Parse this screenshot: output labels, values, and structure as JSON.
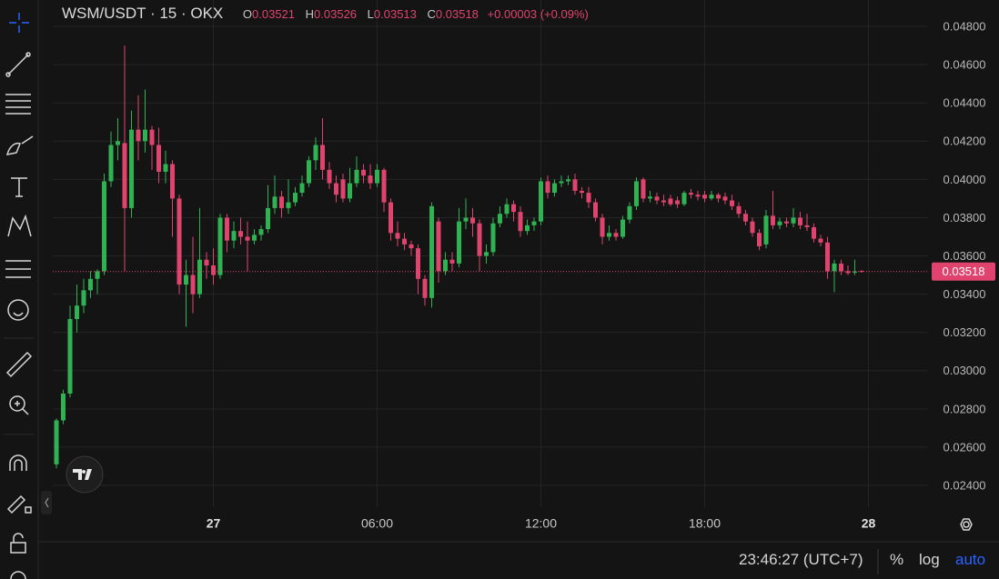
{
  "chart_data": {
    "type": "candlestick",
    "title": "WSM/USDT · 15 · OKX",
    "ohlc_labels": [
      "O",
      "H",
      "L",
      "C"
    ],
    "change": "+0.00003 (+0.09%)",
    "up_color": "#2fb352",
    "down_color": "#e0446e",
    "log_scale": false,
    "grid": true,
    "categories": [
      null,
      null,
      null,
      null,
      null,
      null,
      null,
      null,
      null,
      null,
      null,
      null,
      null,
      null,
      null,
      null,
      null,
      null,
      null,
      null,
      null,
      null,
      null,
      "27",
      null,
      null,
      null,
      null,
      null,
      null,
      null,
      null,
      null,
      null,
      null,
      null,
      null,
      null,
      null,
      null,
      null,
      null,
      null,
      null,
      null,
      null,
      null,
      "06:00",
      null,
      null,
      null,
      null,
      null,
      null,
      null,
      null,
      null,
      null,
      null,
      null,
      null,
      null,
      null,
      null,
      null,
      null,
      null,
      null,
      null,
      null,
      null,
      "12:00",
      null,
      null,
      null,
      null,
      null,
      null,
      null,
      null,
      null,
      null,
      null,
      null,
      null,
      null,
      null,
      null,
      null,
      null,
      null,
      null,
      null,
      null,
      null,
      "18:00",
      null,
      null,
      null,
      null,
      null,
      null,
      null,
      null,
      null,
      null,
      null,
      null,
      null,
      null,
      null,
      null,
      null,
      null,
      null,
      null,
      null,
      null,
      null,
      "28"
    ],
    "open": [
      0.0251,
      0.0274,
      0.0288,
      0.0327,
      0.0334,
      0.0342,
      0.0348,
      0.0352,
      0.0399,
      0.0418,
      0.0419,
      0.0385,
      0.0426,
      0.042,
      0.0426,
      0.0418,
      0.0404,
      0.0408,
      0.039,
      0.0345,
      0.035,
      0.034,
      0.0358,
      0.0355,
      0.035,
      0.038,
      0.0368,
      0.0373,
      0.037,
      0.0368,
      0.0371,
      0.0374,
      0.0385,
      0.0391,
      0.0385,
      0.0388,
      0.0393,
      0.0398,
      0.041,
      0.0418,
      0.0405,
      0.0398,
      0.04,
      0.039,
      0.0398,
      0.0405,
      0.0402,
      0.0398,
      0.0405,
      0.0388,
      0.0372,
      0.0369,
      0.0366,
      0.0364,
      0.0348,
      0.0338,
      0.0378,
      0.0352,
      0.0358,
      0.0356,
      0.0378,
      0.038,
      0.0377,
      0.036,
      0.0362,
      0.0377,
      0.0382,
      0.0387,
      0.0383,
      0.0373,
      0.0376,
      0.0378,
      0.0399,
      0.0393,
      0.0398,
      0.0399,
      0.04,
      0.0394,
      0.0393,
      0.0388,
      0.038,
      0.037,
      0.0372,
      0.037,
      0.0379,
      0.0386,
      0.04,
      0.039,
      0.0391,
      0.0389,
      0.039,
      0.0389,
      0.0387,
      0.0393,
      0.0392,
      0.0392,
      0.039,
      0.0392,
      0.0391,
      0.0389,
      0.0386,
      0.0382,
      0.0378,
      0.0372,
      0.0366,
      0.0381,
      0.0376,
      0.0378,
      0.0377,
      0.038,
      0.0376,
      0.0375,
      0.0369,
      0.0367,
      0.0352,
      0.0356,
      0.0352,
      0.03512,
      0.03521,
      null
    ],
    "high": [
      0.0275,
      0.029,
      0.0334,
      0.0345,
      0.0348,
      0.0352,
      0.0353,
      0.0403,
      0.0425,
      0.0432,
      0.047,
      0.0436,
      0.0444,
      0.0447,
      0.0428,
      0.0427,
      0.0415,
      0.041,
      0.0392,
      0.0358,
      0.037,
      0.0385,
      0.0362,
      0.0364,
      0.0382,
      0.0382,
      0.0378,
      0.038,
      0.0378,
      0.0374,
      0.0376,
      0.0397,
      0.0402,
      0.0394,
      0.04,
      0.0396,
      0.0402,
      0.0412,
      0.0422,
      0.0432,
      0.0409,
      0.0402,
      0.0403,
      0.0406,
      0.0412,
      0.0408,
      0.0408,
      0.0408,
      0.0406,
      0.039,
      0.0378,
      0.0372,
      0.0368,
      0.0366,
      0.035,
      0.0388,
      0.038,
      0.0362,
      0.0362,
      0.0385,
      0.039,
      0.0385,
      0.0379,
      0.0366,
      0.038,
      0.0386,
      0.039,
      0.0389,
      0.0386,
      0.0379,
      0.038,
      0.0401,
      0.0402,
      0.04,
      0.0402,
      0.0402,
      0.0403,
      0.0396,
      0.0396,
      0.039,
      0.0382,
      0.0376,
      0.0374,
      0.0381,
      0.0388,
      0.0401,
      0.0401,
      0.0394,
      0.0393,
      0.0392,
      0.0392,
      0.0391,
      0.0394,
      0.0395,
      0.0394,
      0.0394,
      0.0394,
      0.0393,
      0.0393,
      0.0392,
      0.0388,
      0.0384,
      0.038,
      0.0374,
      0.0384,
      0.0394,
      0.038,
      0.038,
      0.0385,
      0.0383,
      0.0382,
      0.0377,
      0.0371,
      0.037,
      0.0358,
      0.0358,
      0.0355,
      0.0358,
      0.03526,
      null
    ],
    "low": [
      0.0249,
      0.0272,
      0.0286,
      0.032,
      0.033,
      0.0338,
      0.034,
      0.035,
      0.0396,
      0.041,
      0.0352,
      0.038,
      0.041,
      0.0414,
      0.0405,
      0.0398,
      0.0398,
      0.037,
      0.034,
      0.0323,
      0.033,
      0.0338,
      0.0348,
      0.0345,
      0.0348,
      0.0362,
      0.0364,
      0.0366,
      0.0352,
      0.0366,
      0.0368,
      0.0372,
      0.0382,
      0.038,
      0.0382,
      0.0386,
      0.0391,
      0.0396,
      0.0405,
      0.04,
      0.0395,
      0.0388,
      0.0388,
      0.0388,
      0.0396,
      0.0398,
      0.0395,
      0.0396,
      0.0383,
      0.0368,
      0.0365,
      0.0363,
      0.036,
      0.034,
      0.0334,
      0.0333,
      0.0346,
      0.035,
      0.0352,
      0.0354,
      0.0374,
      0.037,
      0.0352,
      0.0356,
      0.036,
      0.0375,
      0.038,
      0.0378,
      0.037,
      0.0371,
      0.0373,
      0.0376,
      0.039,
      0.0391,
      0.0396,
      0.0397,
      0.0392,
      0.039,
      0.0385,
      0.0378,
      0.0366,
      0.0368,
      0.0368,
      0.0369,
      0.0377,
      0.0384,
      0.0388,
      0.0388,
      0.0387,
      0.0386,
      0.0386,
      0.0385,
      0.0386,
      0.039,
      0.0389,
      0.0388,
      0.0389,
      0.0388,
      0.0387,
      0.0384,
      0.038,
      0.0376,
      0.037,
      0.0363,
      0.0364,
      0.0374,
      0.0374,
      0.0375,
      0.0375,
      0.0374,
      0.0373,
      0.0367,
      0.0365,
      0.0348,
      0.0341,
      0.035,
      0.035,
      0.035,
      0.03513,
      null
    ],
    "close": [
      0.0274,
      0.0288,
      0.0327,
      0.0334,
      0.0342,
      0.0348,
      0.0352,
      0.0399,
      0.0418,
      0.042,
      0.0385,
      0.0426,
      0.042,
      0.0426,
      0.0418,
      0.0404,
      0.0408,
      0.039,
      0.0345,
      0.035,
      0.034,
      0.0358,
      0.0355,
      0.035,
      0.038,
      0.0368,
      0.0373,
      0.037,
      0.0368,
      0.0371,
      0.0374,
      0.0385,
      0.0391,
      0.0385,
      0.0388,
      0.0393,
      0.0398,
      0.041,
      0.0418,
      0.0405,
      0.0398,
      0.0392,
      0.039,
      0.0398,
      0.0405,
      0.0402,
      0.0398,
      0.0405,
      0.0388,
      0.0372,
      0.0369,
      0.0366,
      0.0364,
      0.0348,
      0.0338,
      0.0386,
      0.0352,
      0.0358,
      0.0356,
      0.0378,
      0.038,
      0.0377,
      0.036,
      0.0362,
      0.0377,
      0.0382,
      0.0387,
      0.0383,
      0.0373,
      0.0376,
      0.0378,
      0.0399,
      0.0393,
      0.0398,
      0.0399,
      0.04,
      0.0394,
      0.0393,
      0.0388,
      0.038,
      0.037,
      0.0372,
      0.037,
      0.0379,
      0.0386,
      0.0399,
      0.039,
      0.0391,
      0.0389,
      0.0388,
      0.0387,
      0.0387,
      0.0393,
      0.0392,
      0.0391,
      0.039,
      0.0392,
      0.039,
      0.0389,
      0.0386,
      0.0382,
      0.0378,
      0.0372,
      0.0365,
      0.0381,
      0.0376,
      0.0378,
      0.0377,
      0.038,
      0.0376,
      0.0375,
      0.0369,
      0.0367,
      0.0352,
      0.0356,
      0.0352,
      0.0351,
      0.03518,
      0.03518,
      null
    ],
    "ylim": [
      0.02286,
      0.04938
    ],
    "yticks": [
      {
        "value": 0.024,
        "label": "0.02400"
      },
      {
        "value": 0.026,
        "label": "0.02600"
      },
      {
        "value": 0.028,
        "label": "0.02800"
      },
      {
        "value": 0.03,
        "label": "0.03000"
      },
      {
        "value": 0.032,
        "label": "0.03200"
      },
      {
        "value": 0.034,
        "label": "0.03400"
      },
      {
        "value": 0.036,
        "label": "0.03600"
      },
      {
        "value": 0.038,
        "label": "0.03800"
      },
      {
        "value": 0.04,
        "label": "0.04000"
      },
      {
        "value": 0.042,
        "label": "0.04200"
      },
      {
        "value": 0.044,
        "label": "0.04400"
      },
      {
        "value": 0.046,
        "label": "0.04600"
      },
      {
        "value": 0.048,
        "label": "0.04800"
      }
    ]
  },
  "status_bar": {
    "time": "23:46:27 (UTC+7)",
    "percent": "%",
    "log": "log",
    "auto": "auto"
  }
}
